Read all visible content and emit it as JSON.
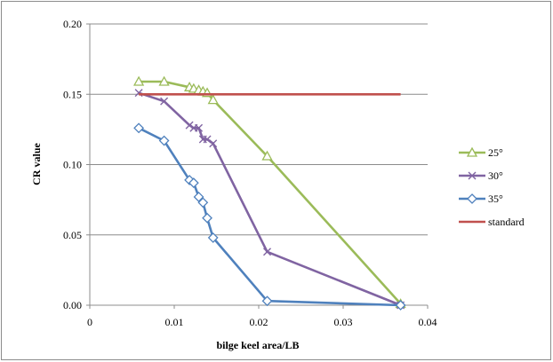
{
  "chart_data": {
    "type": "line",
    "title": "",
    "xlabel": "bilge keel area/LB",
    "ylabel": "CR value",
    "xlim": [
      0,
      0.04
    ],
    "ylim": [
      0,
      0.2
    ],
    "x_ticks": [
      "0",
      "0.01",
      "0.02",
      "0.03",
      "0.04"
    ],
    "y_ticks": [
      "0.00",
      "0.05",
      "0.10",
      "0.15",
      "0.20"
    ],
    "grid": "horizontal",
    "legend": "right",
    "series": [
      {
        "name": "25°",
        "color": "#9bbb59",
        "marker": "triangle",
        "points": [
          [
            0.0058,
            0.159
          ],
          [
            0.0088,
            0.159
          ],
          [
            0.0118,
            0.155
          ],
          [
            0.0123,
            0.154
          ],
          [
            0.0129,
            0.153
          ],
          [
            0.0134,
            0.152
          ],
          [
            0.0139,
            0.151
          ],
          [
            0.0146,
            0.146
          ],
          [
            0.021,
            0.106
          ],
          [
            0.0368,
            0.001
          ]
        ]
      },
      {
        "name": "30°",
        "color": "#8064a2",
        "marker": "x",
        "points": [
          [
            0.0058,
            0.151
          ],
          [
            0.0088,
            0.145
          ],
          [
            0.0118,
            0.128
          ],
          [
            0.0123,
            0.126
          ],
          [
            0.0129,
            0.126
          ],
          [
            0.0134,
            0.118
          ],
          [
            0.0139,
            0.118
          ],
          [
            0.0146,
            0.115
          ],
          [
            0.021,
            0.038
          ],
          [
            0.0368,
            0.0
          ]
        ]
      },
      {
        "name": "35°",
        "color": "#4f81bd",
        "marker": "diamond",
        "points": [
          [
            0.0058,
            0.126
          ],
          [
            0.0088,
            0.117
          ],
          [
            0.0118,
            0.089
          ],
          [
            0.0123,
            0.087
          ],
          [
            0.0129,
            0.077
          ],
          [
            0.0134,
            0.073
          ],
          [
            0.0139,
            0.062
          ],
          [
            0.0146,
            0.048
          ],
          [
            0.021,
            0.003
          ],
          [
            0.0368,
            0.0
          ]
        ]
      },
      {
        "name": "standard",
        "color": "#c0504d",
        "marker": "none",
        "points": [
          [
            0.0058,
            0.15
          ],
          [
            0.0368,
            0.15
          ]
        ]
      }
    ]
  }
}
